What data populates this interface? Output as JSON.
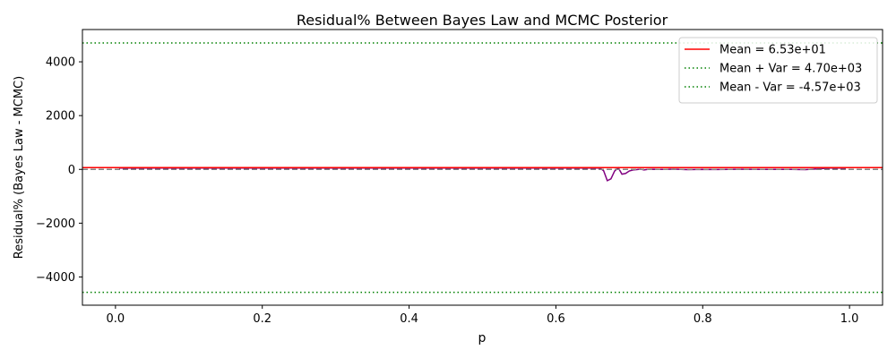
{
  "chart_data": {
    "type": "line",
    "title": "Residual% Between Bayes Law and MCMC Posterior",
    "xlabel": "p",
    "ylabel": "Residual% (Bayes Law - MCMC)",
    "xlim": [
      -0.045,
      1.045
    ],
    "ylim": [
      -5050,
      5200
    ],
    "xticks": [
      0.0,
      0.2,
      0.4,
      0.6,
      0.8,
      1.0
    ],
    "xtick_labels": [
      "0.0",
      "0.2",
      "0.4",
      "0.6",
      "0.8",
      "1.0"
    ],
    "yticks": [
      -4000,
      -2000,
      0,
      2000,
      4000
    ],
    "ytick_labels": [
      "−4000",
      "−2000",
      "0",
      "2000",
      "4000"
    ],
    "grid": false,
    "legend_position": "top-right",
    "series": [
      {
        "kind": "line",
        "color": "#800080",
        "x": [
          0.005,
          0.6,
          0.655,
          0.66,
          0.665,
          0.67,
          0.675,
          0.68,
          0.685,
          0.69,
          0.695,
          0.7,
          0.705,
          0.71,
          0.715,
          0.72,
          0.725,
          0.73,
          0.74,
          0.75,
          0.76,
          0.77,
          0.78,
          0.8,
          0.82,
          0.85,
          0.88,
          0.9,
          0.92,
          0.94,
          0.95,
          0.96,
          0.97,
          0.98,
          0.99,
          0.995
        ],
        "y": [
          50,
          50,
          50,
          50,
          -50,
          -420,
          -350,
          -60,
          60,
          -180,
          -150,
          -60,
          -20,
          -10,
          10,
          -20,
          0,
          5,
          0,
          0,
          10,
          0,
          -10,
          0,
          -5,
          5,
          0,
          0,
          0,
          -10,
          10,
          20,
          50,
          50,
          50,
          50
        ]
      }
    ],
    "reference_lines": [
      {
        "label": "Mean = 6.53e+01",
        "y": 65.3,
        "color": "#ff0000",
        "style": "solid"
      },
      {
        "label": "Mean + Var = 4.70e+03",
        "y": 4700,
        "color": "#008000",
        "style": "dotted"
      },
      {
        "label": "Mean - Var = -4.57e+03",
        "y": -4570,
        "color": "#008000",
        "style": "dotted"
      },
      {
        "label": "",
        "y": 0,
        "color": "#808080",
        "style": "dashed"
      }
    ]
  }
}
